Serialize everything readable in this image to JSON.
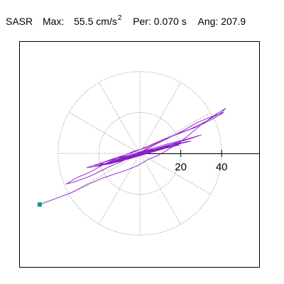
{
  "header": {
    "station": "SASR",
    "max_label": "Max:",
    "max_value": "55.5",
    "max_unit": "cm/s",
    "max_exp": "2",
    "per_label": "Per:",
    "per_value": "0.070 s",
    "ang_label": "Ang:",
    "ang_value": "207.9"
  },
  "chart_data": {
    "type": "line",
    "title": "SASR  Max: 55.5 cm/s2  Per: 0.070 s  Ang: 207.9",
    "xlabel": "",
    "ylabel": "",
    "tick_labels": [
      "20",
      "40"
    ],
    "xlim": [
      -59,
      57
    ],
    "ylim": [
      -57,
      53
    ],
    "grid": "polar-dotted",
    "ring_radii": [
      20,
      40
    ],
    "spoke_angles_deg": [
      0,
      30,
      60,
      90,
      120,
      150,
      180,
      210,
      240,
      270,
      300,
      330
    ],
    "colors": {
      "trace": "#8a1cc9",
      "marker": "#0e9b7f",
      "grid": "#888888"
    },
    "series": [
      {
        "x": [
          -49.0,
          -41,
          -33,
          -25,
          -18,
          -12,
          -6,
          -1,
          4,
          9,
          14,
          19,
          24,
          30,
          37,
          42,
          40,
          33,
          25,
          17,
          10,
          4,
          -3,
          -10,
          -17,
          -24,
          -31,
          -36,
          -32,
          -24,
          -16,
          -9,
          -3,
          3,
          9,
          15,
          21,
          28,
          35,
          41,
          36,
          28,
          20,
          12,
          5,
          -2,
          -8,
          -14,
          -20,
          -26,
          -19,
          -11,
          -4,
          3,
          10,
          17,
          24,
          30,
          23,
          15,
          8,
          1,
          -6,
          -13,
          -20,
          -14,
          -7,
          0,
          7,
          14,
          21,
          25,
          18,
          11,
          4,
          -3,
          -10,
          -17,
          -22,
          -15,
          -8,
          -1,
          6,
          13,
          20,
          14,
          7,
          0,
          -7,
          -14,
          -20,
          -14,
          -7,
          0,
          7,
          14,
          19,
          12,
          5,
          -2,
          -9,
          -15,
          -10,
          -3,
          4,
          11,
          17,
          11,
          4,
          -3,
          -10,
          -16,
          -11,
          -4,
          3,
          10,
          15,
          9,
          2,
          -5,
          -12,
          -16,
          -9,
          -2,
          5,
          12,
          8,
          1,
          -6,
          -13,
          -8,
          -1,
          6,
          11,
          4,
          -3,
          -10,
          -5,
          2,
          8,
          1,
          -6,
          -11,
          -4,
          3,
          6,
          -1,
          -8,
          -3,
          4,
          0
        ],
        "y": [
          -25.0,
          -22,
          -19,
          -15,
          -12,
          -10,
          -8,
          -6,
          -3,
          -1,
          2,
          5,
          9,
          14,
          19,
          22,
          20,
          16,
          12,
          9,
          6,
          3,
          1,
          -2,
          -5,
          -9,
          -12,
          -15,
          -14,
          -11,
          -7,
          -4,
          -1,
          2,
          5,
          8,
          11,
          15,
          18,
          20,
          17,
          13,
          10,
          7,
          4,
          1,
          -1,
          -3,
          -5,
          -7,
          -6,
          -3,
          -1,
          1,
          3,
          5,
          7,
          9,
          7,
          5,
          3,
          1,
          -1,
          -3,
          -5,
          -5,
          -3,
          -1,
          1,
          3,
          5,
          6,
          5,
          3,
          1,
          -1,
          -3,
          -5,
          -6,
          -5,
          -3,
          -1,
          1,
          3,
          5,
          4,
          2,
          0,
          -2,
          -4,
          -6,
          -5,
          -3,
          -1,
          1,
          3,
          4,
          3,
          1,
          -1,
          -3,
          -5,
          -4,
          -2,
          0,
          2,
          4,
          3,
          1,
          -1,
          -3,
          -5,
          -4,
          -2,
          0,
          2,
          3,
          2,
          0,
          -2,
          -4,
          -5,
          -3,
          -1,
          1,
          3,
          2,
          0,
          -2,
          -4,
          -3,
          -1,
          1,
          2,
          1,
          -1,
          -3,
          -2,
          0,
          2,
          1,
          -1,
          -3,
          -1,
          1,
          2,
          0,
          -2,
          -1,
          1,
          0
        ]
      }
    ],
    "marker": {
      "x": -49,
      "y": -25
    }
  }
}
